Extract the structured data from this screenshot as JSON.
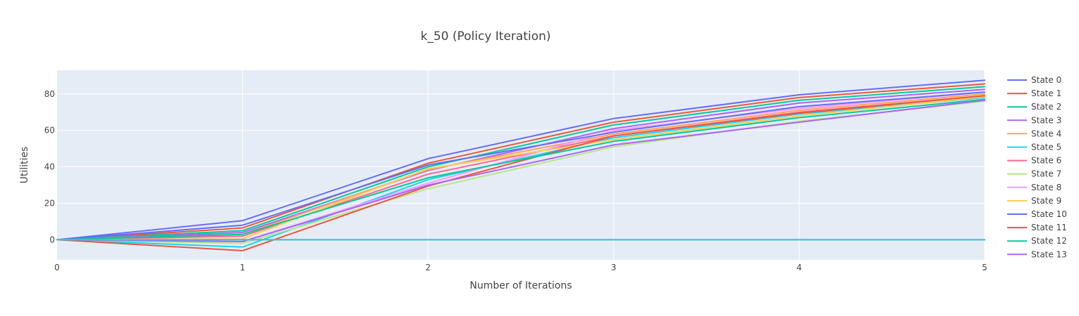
{
  "chart_data": {
    "type": "line",
    "title": "k_50 (Policy Iteration)",
    "xlabel": "Number of Iterations",
    "ylabel": "Utilities",
    "xlim": [
      0,
      5
    ],
    "ylim": [
      -11,
      93
    ],
    "x_ticks": [
      0,
      1,
      2,
      3,
      4,
      5
    ],
    "y_ticks": [
      0,
      20,
      40,
      60,
      80
    ],
    "grid": true,
    "legend_position": "right",
    "x": [
      0,
      1,
      2,
      3,
      4,
      5
    ],
    "series": [
      {
        "name": "State 0",
        "color": "#636efa",
        "values": [
          0,
          10.5,
          44.5,
          66.5,
          79.5,
          87.5
        ]
      },
      {
        "name": "State 1",
        "color": "#EF553B",
        "values": [
          0,
          6.5,
          42,
          64.5,
          78,
          85.5
        ]
      },
      {
        "name": "State 2",
        "color": "#00cc96",
        "values": [
          0,
          5,
          40,
          63,
          76.5,
          84
        ]
      },
      {
        "name": "State 3",
        "color": "#ab63fa",
        "values": [
          0,
          4,
          38,
          61,
          75,
          82.5
        ]
      },
      {
        "name": "State 4",
        "color": "#FFA15A",
        "values": [
          0,
          3,
          38.5,
          58,
          71,
          80
        ]
      },
      {
        "name": "State 5",
        "color": "#19d3f3",
        "values": [
          0,
          -4,
          33,
          56,
          69,
          78
        ]
      },
      {
        "name": "State 6",
        "color": "#FF6692",
        "values": [
          0,
          2,
          36,
          57,
          70,
          79
        ]
      },
      {
        "name": "State 7",
        "color": "#B6E880",
        "values": [
          0,
          -2,
          28,
          51,
          65,
          76
        ]
      },
      {
        "name": "State 8",
        "color": "#FF97FF",
        "values": [
          0,
          -1,
          31,
          60,
          72,
          81
        ]
      },
      {
        "name": "State 9",
        "color": "#FECB52",
        "values": [
          0,
          0.5,
          39,
          55,
          68,
          78.5
        ]
      },
      {
        "name": "State 10",
        "color": "#636efa",
        "values": [
          0,
          8,
          41,
          59,
          73,
          81
        ]
      },
      {
        "name": "State 11",
        "color": "#EF553B",
        "values": [
          0,
          -6,
          29.5,
          57,
          69.5,
          79
        ]
      },
      {
        "name": "State 12",
        "color": "#00cc96",
        "values": [
          0,
          3,
          34,
          54,
          67,
          77
        ]
      },
      {
        "name": "State 13",
        "color": "#ab63fa",
        "values": [
          0,
          -1,
          30,
          52,
          64.5,
          76.5
        ]
      },
      {
        "name": "",
        "color": "#3fb8c8",
        "values": [
          0,
          0,
          0,
          0,
          0,
          0
        ]
      },
      {
        "name": "",
        "color": "#45c0cf",
        "values": [
          0,
          0,
          0,
          0,
          0,
          0
        ]
      }
    ]
  }
}
